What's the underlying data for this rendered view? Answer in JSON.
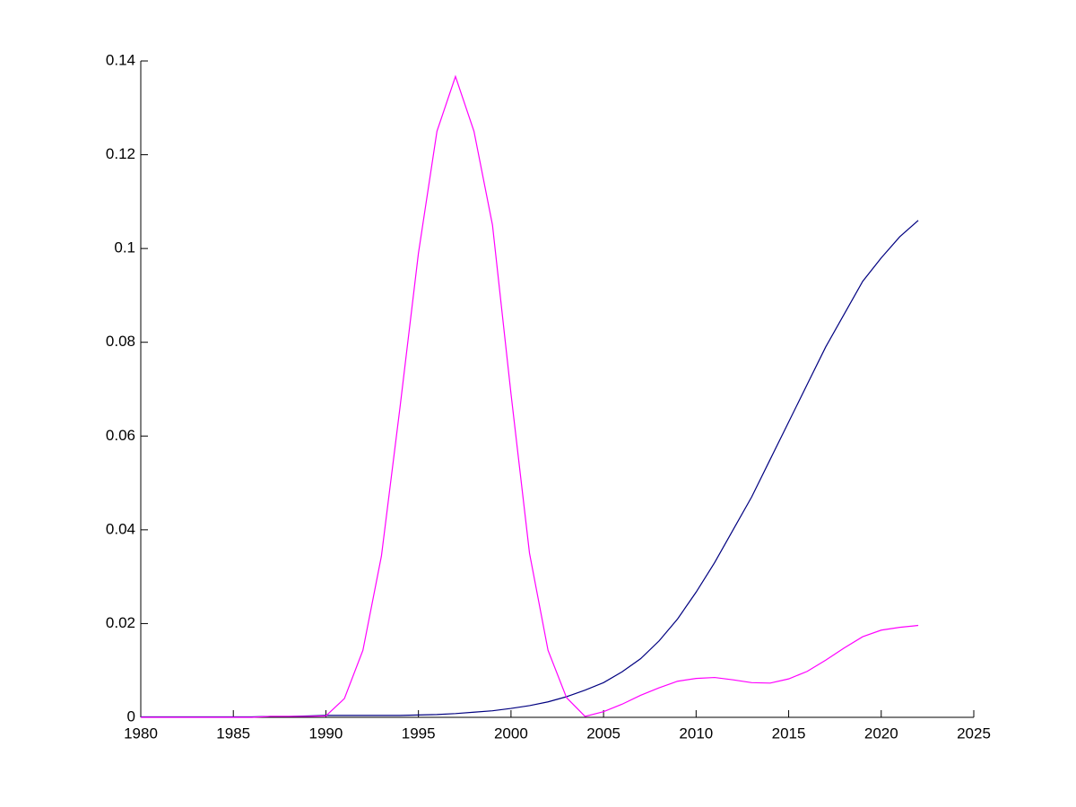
{
  "chart_data": {
    "type": "line",
    "x": [
      1980,
      1981,
      1982,
      1983,
      1984,
      1985,
      1986,
      1987,
      1988,
      1989,
      1990,
      1991,
      1992,
      1993,
      1994,
      1995,
      1996,
      1997,
      1998,
      1999,
      2000,
      2001,
      2002,
      2003,
      2004,
      2005,
      2006,
      2007,
      2008,
      2009,
      2010,
      2011,
      2012,
      2013,
      2014,
      2015,
      2016,
      2017,
      2018,
      2019,
      2020,
      2021,
      2022
    ],
    "series": [
      {
        "color": "#000080",
        "values": [
          0.0001,
          0.0001,
          0.0001,
          0.0001,
          0.0001,
          0.0001,
          0.0001,
          0.0002,
          0.0002,
          0.0003,
          0.0004,
          0.0004,
          0.0004,
          0.0004,
          0.0004,
          0.0005,
          0.0006,
          0.0008,
          0.0011,
          0.0014,
          0.0019,
          0.0025,
          0.0033,
          0.0044,
          0.0058,
          0.0074,
          0.0097,
          0.0125,
          0.0163,
          0.021,
          0.0267,
          0.033,
          0.04,
          0.047,
          0.055,
          0.063,
          0.071,
          0.079,
          0.086,
          0.093,
          0.098,
          0.1025,
          0.106
        ]
      },
      {
        "color": "#ff00ff",
        "values": [
          0,
          0,
          0,
          0,
          0,
          0,
          0,
          0.0002,
          0.0002,
          0.0002,
          0.0003,
          0.004,
          0.0143,
          0.0344,
          0.066,
          0.099,
          0.125,
          0.1367,
          0.125,
          0.105,
          0.069,
          0.035,
          0.0143,
          0.0042,
          0.0002,
          0.0012,
          0.0028,
          0.0047,
          0.0063,
          0.0077,
          0.0083,
          0.0085,
          0.008,
          0.0074,
          0.0073,
          0.0082,
          0.0098,
          0.0122,
          0.0148,
          0.0172,
          0.0186,
          0.0192,
          0.0196
        ]
      }
    ],
    "xlim": [
      1980,
      2025
    ],
    "xticks": [
      1980,
      1985,
      1990,
      1995,
      2000,
      2005,
      2010,
      2015,
      2020,
      2025
    ],
    "ylim": [
      0,
      0.14
    ],
    "yticks": [
      0,
      0.02,
      0.04,
      0.06,
      0.08,
      0.1,
      0.12,
      0.14
    ],
    "grid": false
  }
}
